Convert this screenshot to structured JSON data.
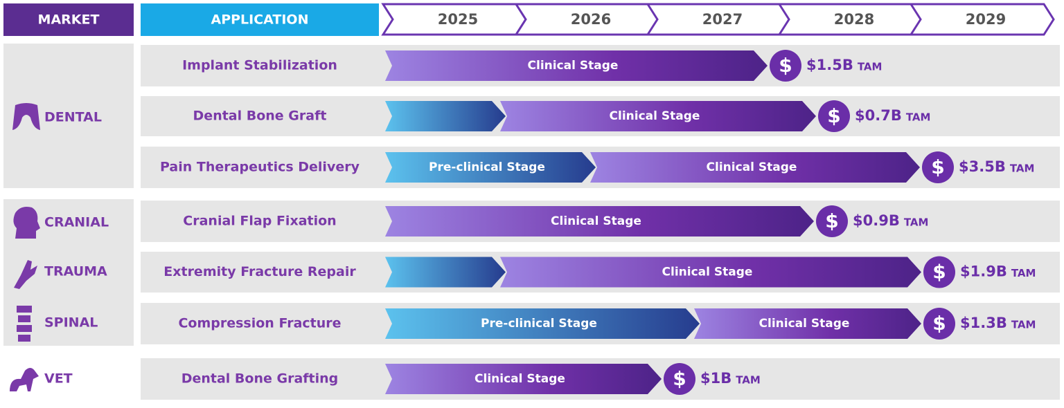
{
  "header": {
    "market": "MARKET",
    "application": "APPLICATION",
    "years": [
      "2025",
      "2026",
      "2027",
      "2028",
      "2029"
    ]
  },
  "currency_symbol": "$",
  "tam_unit": "TAM",
  "markets": [
    {
      "label": "DENTAL"
    },
    {
      "label": "CRANIAL"
    },
    {
      "label": "TRAUMA"
    },
    {
      "label": "SPINAL"
    },
    {
      "label": "VET"
    }
  ],
  "rows": [
    {
      "application": "Implant Stabilization",
      "stages": [
        "Clinical Stage"
      ],
      "tam": "$1.5B"
    },
    {
      "application": "Dental Bone Graft",
      "stages": [
        "Clinical Stage"
      ],
      "tam": "$0.7B"
    },
    {
      "application": "Pain Therapeutics Delivery",
      "stages": [
        "Pre-clinical Stage",
        "Clinical Stage"
      ],
      "tam": "$3.5B"
    },
    {
      "application": "Cranial Flap Fixation",
      "stages": [
        "Clinical Stage"
      ],
      "tam": "$0.9B"
    },
    {
      "application": "Extremity Fracture Repair",
      "stages": [
        "Clinical Stage"
      ],
      "tam": "$1.9B"
    },
    {
      "application": "Compression Fracture",
      "stages": [
        "Pre-clinical Stage",
        "Clinical Stage"
      ],
      "tam": "$1.3B"
    },
    {
      "application": "Dental Bone Grafting",
      "stages": [
        "Clinical Stage"
      ],
      "tam": "$1B"
    }
  ]
}
